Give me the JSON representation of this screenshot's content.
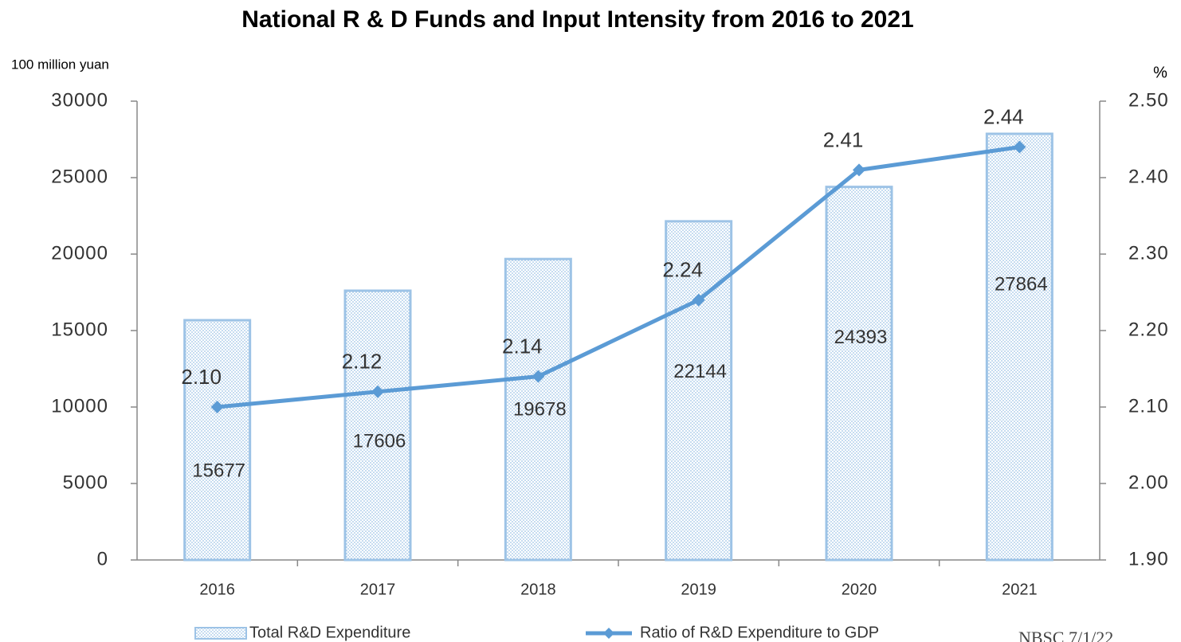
{
  "chart_data": {
    "type": "bar",
    "title": "National R & D Funds and Input Intensity from 2016 to 2021",
    "y_label": "100 million yuan",
    "y2_label": "%",
    "footer": "NBSC 7/1/22",
    "categories": [
      "2016",
      "2017",
      "2018",
      "2019",
      "2020",
      "2021"
    ],
    "series": [
      {
        "name": "Total R&D Expenditure",
        "type": "bar",
        "axis": "y",
        "color": "#9dc3e6",
        "values": [
          15677,
          17606,
          19678,
          22144,
          24393,
          27864
        ]
      },
      {
        "name": "Ratio of R&D Expenditure to GDP",
        "type": "line",
        "axis": "y2",
        "color": "#5b9bd5",
        "values": [
          2.1,
          2.12,
          2.14,
          2.24,
          2.41,
          2.44
        ],
        "value_labels": [
          "2.10",
          "2.12",
          "2.14",
          "2.24",
          "2.41",
          "2.44"
        ]
      }
    ],
    "ylim": [
      0,
      30000
    ],
    "yticks": [
      0,
      5000,
      10000,
      15000,
      20000,
      25000,
      30000
    ],
    "y2lim": [
      1.9,
      2.5
    ],
    "y2ticks": [
      {
        "value": 1.9,
        "label": "1.90"
      },
      {
        "value": 2.0,
        "label": "2.00"
      },
      {
        "value": 2.1,
        "label": "2.10"
      },
      {
        "value": 2.2,
        "label": "2.20"
      },
      {
        "value": 2.3,
        "label": "2.30"
      },
      {
        "value": 2.4,
        "label": "2.40"
      },
      {
        "value": 2.5,
        "label": "2.50"
      }
    ],
    "grid": false
  }
}
